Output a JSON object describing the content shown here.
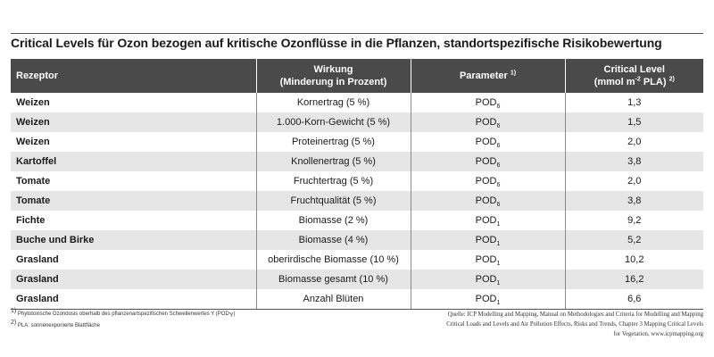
{
  "title": "Critical Levels für Ozon bezogen auf kritische Ozonflüsse in die Pflanzen, standortspezifische Risikobewertung",
  "headers": {
    "rezeptor": "Rezeptor",
    "wirkung_line1": "Wirkung",
    "wirkung_line2": "(Minderung in Prozent)",
    "parameter": "Parameter",
    "parameter_sup": "1)",
    "critical_line1": "Critical Level",
    "critical_unit_a": "(mmol m",
    "critical_unit_sup": "-2",
    "critical_unit_b": " PLA)",
    "critical_sup": "2)"
  },
  "rows": [
    {
      "rezeptor": "Weizen",
      "wirkung": "Kornertrag (5 %)",
      "param": "POD",
      "sub": "6",
      "level": "1,3"
    },
    {
      "rezeptor": "Weizen",
      "wirkung": "1.000-Korn-Gewicht (5 %)",
      "param": "POD",
      "sub": "6",
      "level": "1,5"
    },
    {
      "rezeptor": "Weizen",
      "wirkung": "Proteinertrag (5 %)",
      "param": "POD",
      "sub": "6",
      "level": "2,0"
    },
    {
      "rezeptor": "Kartoffel",
      "wirkung": "Knollenertrag (5 %)",
      "param": "POD",
      "sub": "6",
      "level": "3,8"
    },
    {
      "rezeptor": "Tomate",
      "wirkung": "Fruchtertrag (5 %)",
      "param": "POD",
      "sub": "6",
      "level": "2,0"
    },
    {
      "rezeptor": "Tomate",
      "wirkung": "Fruchtqualität (5 %)",
      "param": "POD",
      "sub": "6",
      "level": "3,8"
    },
    {
      "rezeptor": "Fichte",
      "wirkung": "Biomasse (2 %)",
      "param": "POD",
      "sub": "1",
      "level": "9,2"
    },
    {
      "rezeptor": "Buche und Birke",
      "wirkung": "Biomasse (4 %)",
      "param": "POD",
      "sub": "1",
      "level": "5,2"
    },
    {
      "rezeptor": "Grasland",
      "wirkung": "oberirdische Biomasse (10 %)",
      "param": "POD",
      "sub": "1",
      "level": "10,2"
    },
    {
      "rezeptor": "Grasland",
      "wirkung": "Biomasse gesamt (10 %)",
      "param": "POD",
      "sub": "1",
      "level": "16,2"
    },
    {
      "rezeptor": "Grasland",
      "wirkung": "Anzahl Blüten",
      "param": "POD",
      "sub": "1",
      "level": "6,6"
    }
  ],
  "footnotes": {
    "fn1_mark": "1)",
    "fn1_text_a": " Phytotoxische Ozondosis oberhalb des  pflanzenartspezifischen Schwellenwertes Y (POD",
    "fn1_sub": "Y",
    "fn1_text_b": ")",
    "fn2_mark": "2)",
    "fn2_text": " PLA: sonnenexponierte Blattfläche"
  },
  "source": {
    "line1": "Quelle: ICP Modelling and Mapping, Manual on Methodologies and Criteria for Modelling and Mapping",
    "line2": "Critical Loads and Levels and Air Pollution Effects, Risks and Trends, Chapter 3 Mapping Critical Levels",
    "line3": "for Vegetation, www.icpmapping.org"
  }
}
